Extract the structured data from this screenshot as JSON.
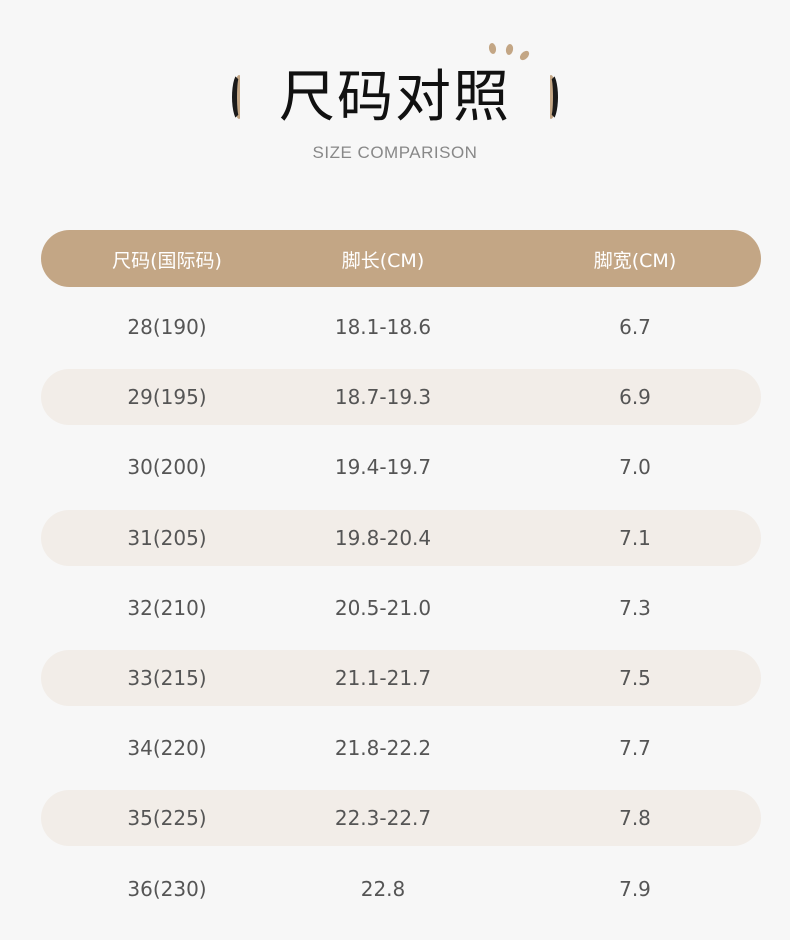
{
  "title": "尺码对照",
  "subtitle": "SIZE COMPARISON",
  "colors": {
    "accent": "#c3a685",
    "stripe": "#f2ede8",
    "background": "#f7f7f7"
  },
  "table": {
    "headers": [
      "尺码(国际码)",
      "脚长(CM)",
      "脚宽(CM)"
    ],
    "rows": [
      [
        "28(190)",
        "18.1-18.6",
        "6.7"
      ],
      [
        "29(195)",
        "18.7-19.3",
        "6.9"
      ],
      [
        "30(200)",
        "19.4-19.7",
        "7.0"
      ],
      [
        "31(205)",
        "19.8-20.4",
        "7.1"
      ],
      [
        "32(210)",
        "20.5-21.0",
        "7.3"
      ],
      [
        "33(215)",
        "21.1-21.7",
        "7.5"
      ],
      [
        "34(220)",
        "21.8-22.2",
        "7.7"
      ],
      [
        "35(225)",
        "22.3-22.7",
        "7.8"
      ],
      [
        "36(230)",
        "22.8",
        "7.9"
      ]
    ]
  }
}
